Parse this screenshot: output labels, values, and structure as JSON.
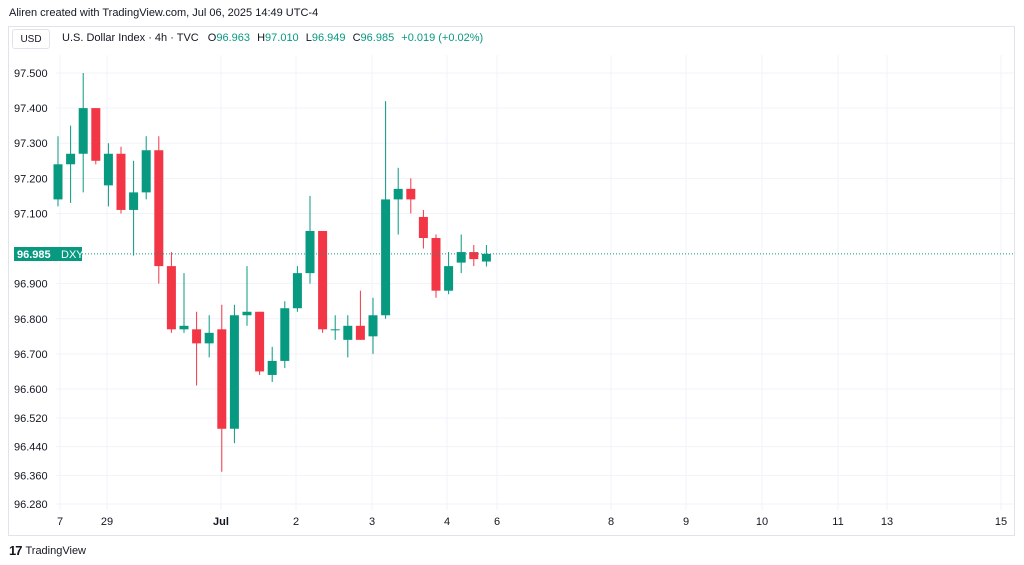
{
  "header": {
    "credit": "Aliren created with TradingView.com, Jul 06, 2025 14:49 UTC-4"
  },
  "currency_button": "USD",
  "legend": {
    "symbol": "U.S. Dollar Index · 4h · TVC",
    "open_key": "O",
    "open": "96.963",
    "high_key": "H",
    "high": "97.010",
    "low_key": "L",
    "low": "96.949",
    "close_key": "C",
    "close": "96.985",
    "change": "+0.019 (+0.02%)"
  },
  "price_tag": {
    "value": "96.985",
    "ticker": "DXY"
  },
  "footer": {
    "brand": "TradingView"
  },
  "colors": {
    "up": "#089981",
    "down": "#f23645",
    "grid": "#f0f3fa",
    "text": "#131722"
  },
  "chart_data": {
    "type": "candlestick",
    "y_ticks": [
      "97.500",
      "97.400",
      "97.300",
      "97.200",
      "97.100",
      "96.900",
      "96.800",
      "96.700",
      "96.600",
      "96.520",
      "96.440",
      "96.360",
      "96.280"
    ],
    "x_ticks": [
      "7",
      "29",
      "Jul",
      "2",
      "3",
      "4",
      "6",
      "8",
      "9",
      "10",
      "11",
      "13",
      "15"
    ],
    "last_price": 96.985,
    "candles": [
      {
        "o": 97.14,
        "h": 97.32,
        "l": 97.12,
        "c": 97.24
      },
      {
        "o": 97.24,
        "h": 97.35,
        "l": 97.13,
        "c": 97.27
      },
      {
        "o": 97.27,
        "h": 97.5,
        "l": 97.16,
        "c": 97.4
      },
      {
        "o": 97.4,
        "h": 97.4,
        "l": 97.24,
        "c": 97.25
      },
      {
        "o": 97.18,
        "h": 97.3,
        "l": 97.12,
        "c": 97.27
      },
      {
        "o": 97.27,
        "h": 97.29,
        "l": 97.1,
        "c": 97.11
      },
      {
        "o": 97.11,
        "h": 97.25,
        "l": 96.98,
        "c": 97.16
      },
      {
        "o": 97.16,
        "h": 97.32,
        "l": 97.14,
        "c": 97.28
      },
      {
        "o": 97.28,
        "h": 97.32,
        "l": 96.9,
        "c": 96.95
      },
      {
        "o": 96.95,
        "h": 96.99,
        "l": 96.76,
        "c": 96.77
      },
      {
        "o": 96.77,
        "h": 96.93,
        "l": 96.76,
        "c": 96.78
      },
      {
        "o": 96.77,
        "h": 96.82,
        "l": 96.61,
        "c": 96.73
      },
      {
        "o": 96.73,
        "h": 96.81,
        "l": 96.69,
        "c": 96.76
      },
      {
        "o": 96.77,
        "h": 96.84,
        "l": 96.37,
        "c": 96.49
      },
      {
        "o": 96.49,
        "h": 96.84,
        "l": 96.45,
        "c": 96.81
      },
      {
        "o": 96.81,
        "h": 96.95,
        "l": 96.78,
        "c": 96.82
      },
      {
        "o": 96.82,
        "h": 96.82,
        "l": 96.64,
        "c": 96.65
      },
      {
        "o": 96.64,
        "h": 96.72,
        "l": 96.62,
        "c": 96.68
      },
      {
        "o": 96.68,
        "h": 96.85,
        "l": 96.66,
        "c": 96.83
      },
      {
        "o": 96.83,
        "h": 96.95,
        "l": 96.82,
        "c": 96.93
      },
      {
        "o": 96.93,
        "h": 97.15,
        "l": 96.9,
        "c": 97.05
      },
      {
        "o": 97.05,
        "h": 97.05,
        "l": 96.76,
        "c": 96.77
      },
      {
        "o": 96.77,
        "h": 96.81,
        "l": 96.74,
        "c": 96.77
      },
      {
        "o": 96.74,
        "h": 96.81,
        "l": 96.69,
        "c": 96.78
      },
      {
        "o": 96.78,
        "h": 96.88,
        "l": 96.74,
        "c": 96.74
      },
      {
        "o": 96.75,
        "h": 96.86,
        "l": 96.7,
        "c": 96.81
      },
      {
        "o": 96.81,
        "h": 97.42,
        "l": 96.8,
        "c": 97.14
      },
      {
        "o": 97.14,
        "h": 97.23,
        "l": 97.04,
        "c": 97.17
      },
      {
        "o": 97.17,
        "h": 97.2,
        "l": 97.1,
        "c": 97.14
      },
      {
        "o": 97.09,
        "h": 97.11,
        "l": 97.0,
        "c": 97.03
      },
      {
        "o": 97.03,
        "h": 97.04,
        "l": 96.86,
        "c": 96.88
      },
      {
        "o": 96.88,
        "h": 96.99,
        "l": 96.87,
        "c": 96.95
      },
      {
        "o": 96.96,
        "h": 97.04,
        "l": 96.93,
        "c": 96.99
      },
      {
        "o": 96.99,
        "h": 97.01,
        "l": 96.95,
        "c": 96.97
      },
      {
        "o": 96.963,
        "h": 97.01,
        "l": 96.949,
        "c": 96.985
      }
    ]
  }
}
